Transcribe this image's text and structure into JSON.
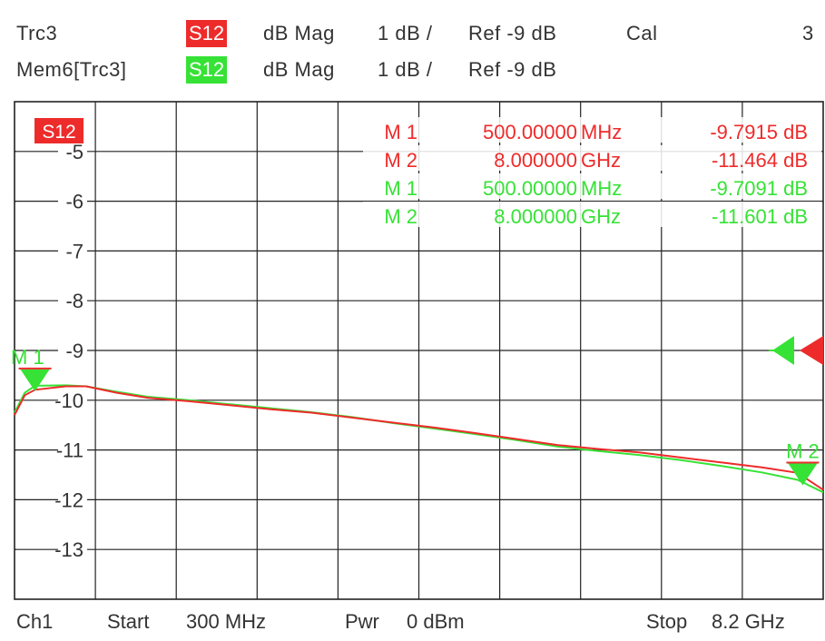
{
  "header": {
    "row1": {
      "trace": "Trc3",
      "param": "S12",
      "format": "dB Mag",
      "scale": "1 dB /",
      "ref": "Ref -9 dB",
      "cal": "Cal",
      "channel_num": "3"
    },
    "row2": {
      "trace": "Mem6[Trc3]",
      "param": "S12",
      "format": "dB Mag",
      "scale": "1 dB /",
      "ref": "Ref -9 dB"
    }
  },
  "footer": {
    "channel": "Ch1",
    "start_label": "Start",
    "start_value": "300 MHz",
    "pwr_label": "Pwr",
    "pwr_value": "0 dBm",
    "stop_label": "Stop",
    "stop_value": "8.2 GHz"
  },
  "colors": {
    "trace_red": "#ee2b2b",
    "trace_green": "#36e236",
    "grid": "#222222",
    "text": "#333333"
  },
  "chart_data": {
    "type": "line",
    "trace_tag": "S12",
    "xlim": [
      0.3,
      8.2
    ],
    "ylim": [
      -14,
      -4
    ],
    "y_ticks": [
      -5,
      -6,
      -7,
      -8,
      -9,
      -10,
      -11,
      -12,
      -13
    ],
    "y_tick_labels": [
      "-5",
      "-6",
      "-7",
      "-8",
      "-9",
      "-10",
      "-11",
      "-12",
      "-13"
    ],
    "grid": true,
    "series": [
      {
        "name": "Trc3",
        "color": "#ee2b2b",
        "x": [
          0.3,
          0.4,
          0.5,
          0.8,
          1.0,
          1.3,
          1.6,
          2.0,
          2.4,
          2.8,
          3.2,
          3.6,
          4.0,
          4.4,
          4.8,
          5.2,
          5.6,
          6.0,
          6.4,
          6.8,
          7.2,
          7.6,
          7.95,
          8.2
        ],
        "y": [
          -10.3,
          -9.9,
          -9.79,
          -9.72,
          -9.72,
          -9.85,
          -9.95,
          -10.02,
          -10.1,
          -10.18,
          -10.25,
          -10.35,
          -10.45,
          -10.55,
          -10.66,
          -10.78,
          -10.9,
          -10.98,
          -11.05,
          -11.15,
          -11.25,
          -11.35,
          -11.46,
          -11.8
        ]
      },
      {
        "name": "Mem6[Trc3]",
        "color": "#36e236",
        "x": [
          0.3,
          0.4,
          0.5,
          0.8,
          1.0,
          1.3,
          1.6,
          2.0,
          2.4,
          2.8,
          3.2,
          3.6,
          4.0,
          4.4,
          4.8,
          5.2,
          5.6,
          6.0,
          6.4,
          6.8,
          7.2,
          7.6,
          7.95,
          8.2
        ],
        "y": [
          -10.25,
          -9.85,
          -9.71,
          -9.7,
          -9.72,
          -9.83,
          -9.93,
          -10.0,
          -10.08,
          -10.16,
          -10.24,
          -10.34,
          -10.46,
          -10.57,
          -10.68,
          -10.8,
          -10.93,
          -11.02,
          -11.1,
          -11.2,
          -11.32,
          -11.45,
          -11.6,
          -11.85
        ]
      }
    ],
    "markers": [
      {
        "label": "M 1",
        "freq": "500.00000",
        "unit": "MHz",
        "value": "-9.7915 dB",
        "trace": "Trc3",
        "color": "#ee2b2b"
      },
      {
        "label": "M 2",
        "freq": "8.000000",
        "unit": "GHz",
        "value": "-11.464 dB",
        "trace": "Trc3",
        "color": "#ee2b2b"
      },
      {
        "label": "M 1",
        "freq": "500.00000",
        "unit": "MHz",
        "value": "-9.7091 dB",
        "trace": "Mem6[Trc3]",
        "color": "#36e236"
      },
      {
        "label": "M 2",
        "freq": "8.000000",
        "unit": "GHz",
        "value": "-11.601 dB",
        "trace": "Mem6[Trc3]",
        "color": "#36e236"
      }
    ],
    "plot_markers": [
      {
        "label": "M 1",
        "x": 0.5,
        "y": -9.71
      },
      {
        "label": "M 2",
        "x": 8.0,
        "y": -11.6
      }
    ],
    "ref_level": -9
  }
}
